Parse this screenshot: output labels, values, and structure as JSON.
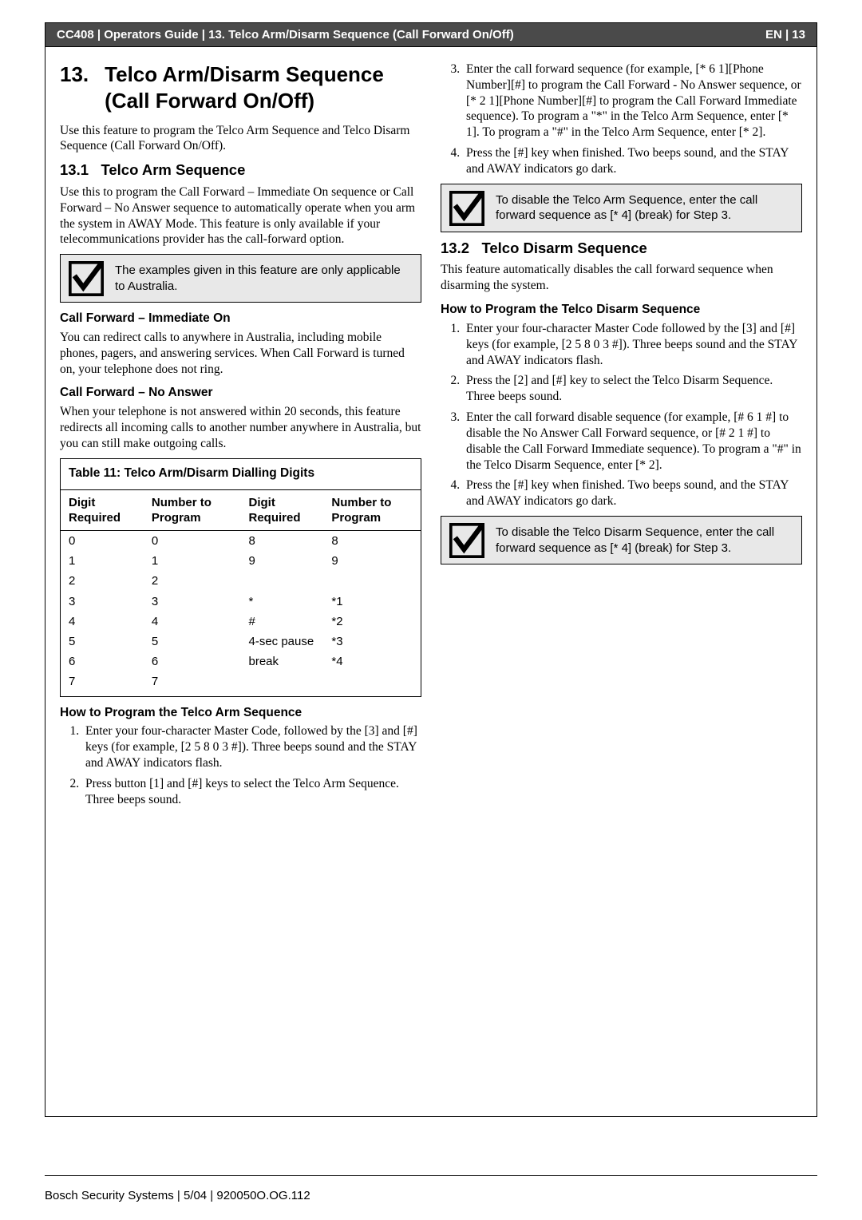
{
  "header": {
    "left": "CC408 | Operators Guide | 13.  Telco Arm/Disarm Sequence (Call Forward On/Off)",
    "right": "EN | 13"
  },
  "left_col": {
    "section_num": "13.",
    "section_title": "Telco Arm/Disarm Sequence (Call Forward On/Off)",
    "intro_p": "Use this feature to program the Telco Arm Sequence and Telco Disarm Sequence (Call Forward On/Off).",
    "sub1_num": "13.1",
    "sub1_title": "Telco Arm Sequence",
    "sub1_p": "Use this to program the Call Forward – Immediate On sequence or Call Forward – No Answer sequence to automatically operate when you arm the system in AWAY Mode. This feature is only available if your telecommunications provider has the call-forward option.",
    "callout1": "The examples given in this feature are only applicable to Australia.",
    "h_immediate": "Call Forward –  Immediate On",
    "p_immediate": "You can redirect calls to anywhere in Australia, including mobile phones, pagers, and answering services. When Call Forward is turned on, your telephone does not ring.",
    "h_noanswer": "Call Forward –  No Answer",
    "p_noanswer": "When your telephone is not answered within 20 seconds, this feature redirects all incoming calls to another number anywhere in Australia, but you can still make outgoing calls.",
    "table": {
      "caption": "Table 11:   Telco Arm/Disarm Dialling Digits",
      "headers": [
        "Digit Required",
        "Number to Program",
        "Digit Required",
        "Number to Program"
      ],
      "rows": [
        [
          "0",
          "0",
          "8",
          "8"
        ],
        [
          "1",
          "1",
          "9",
          "9"
        ],
        [
          "2",
          "2",
          "",
          ""
        ],
        [
          "3",
          "3",
          "*",
          "*1"
        ],
        [
          "4",
          "4",
          "#",
          "*2"
        ],
        [
          "5",
          "5",
          "4-sec pause",
          "*3"
        ],
        [
          "6",
          "6",
          "break",
          "*4"
        ],
        [
          "7",
          "7",
          "",
          ""
        ]
      ]
    },
    "h_howarm": "How to Program the Telco Arm Sequence",
    "arm_steps": [
      "Enter your four-character Master Code, followed by the [3] and [#] keys (for example,\n[2 5 8 0 3 #]).\nThree beeps sound and the STAY and AWAY indicators flash.",
      "Press button [1] and [#] keys to select the Telco Arm Sequence.\nThree beeps sound."
    ]
  },
  "right_col": {
    "arm_steps_cont": [
      "Enter the call forward sequence (for example, [* 6 1][Phone Number][#] to program the Call Forward - No Answer sequence, or [* 2 1][Phone Number][#] to program the Call Forward Immediate sequence).\nTo program a \"*\" in the Telco Arm Sequence, enter [* 1]. To program a \"#\" in the Telco Arm Sequence, enter [* 2].",
      "Press the [#] key when finished.\nTwo beeps sound, and the STAY and AWAY indicators go dark."
    ],
    "callout2": "To disable the Telco Arm Sequence, enter the call forward sequence as [* 4] (break) for Step 3.",
    "sub2_num": "13.2",
    "sub2_title": "Telco Disarm Sequence",
    "sub2_p": "This feature automatically disables the call forward sequence when disarming the system.",
    "h_howdisarm": "How to Program the Telco Disarm Sequence",
    "disarm_steps": [
      "Enter your four-character Master Code followed by the [3] and [#] keys (for example,\n[2 5 8 0 3 #]).\nThree beeps sound and the STAY and AWAY indicators flash.",
      "Press the [2] and [#] key to select the Telco Disarm Sequence. Three beeps sound.",
      "Enter the call forward disable sequence (for example, [# 6 1 #] to disable the No Answer Call Forward sequence, or [# 2 1 #] to disable the Call Forward Immediate sequence).\nTo program a \"#\" in the Telco Disarm Sequence, enter [* 2].",
      "Press the [#] key when finished.\nTwo beeps sound, and the STAY and AWAY indicators go dark."
    ],
    "callout3": "To disable the Telco Disarm Sequence, enter the call forward sequence as [* 4] (break) for Step 3."
  },
  "footer": "Bosch Security Systems | 5/04 | 920050O.OG.112"
}
